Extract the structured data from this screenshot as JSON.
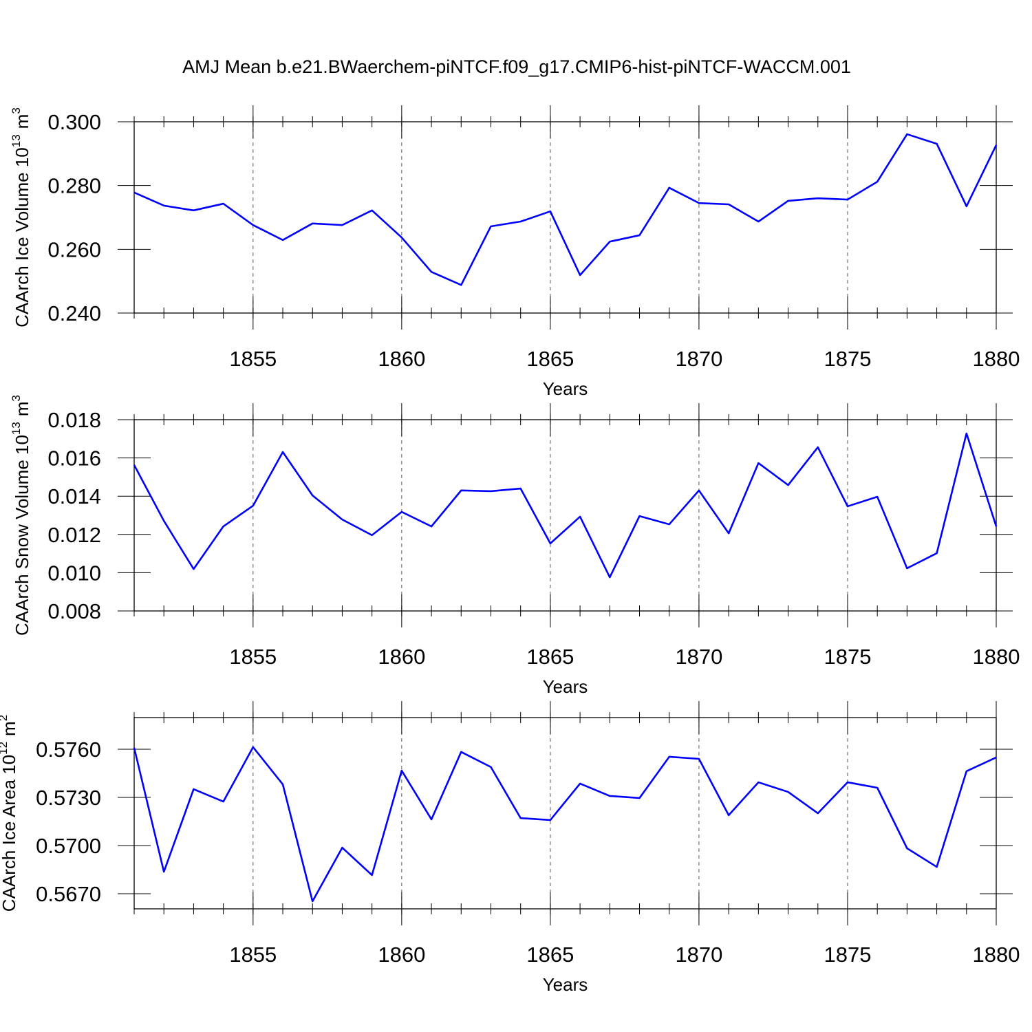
{
  "chart_data": [
    {
      "type": "line",
      "title": "AMJ Mean b.e21.BWaerchem-piNTCF.f09_g17.CMIP6-hist-piNTCF-WACCM.001",
      "xlabel": "Years",
      "ylabel": {
        "text": "CAArch Ice Volume 10",
        "exponent": "13",
        "unit": "m",
        "unit_exponent": "3"
      },
      "x": [
        1851,
        1852,
        1853,
        1854,
        1855,
        1856,
        1857,
        1858,
        1859,
        1860,
        1861,
        1862,
        1863,
        1864,
        1865,
        1866,
        1867,
        1868,
        1869,
        1870,
        1871,
        1872,
        1873,
        1874,
        1875,
        1876,
        1877,
        1878,
        1879,
        1880
      ],
      "series": [
        {
          "color": "#0000ff",
          "values": [
            0.2778,
            0.2737,
            0.2722,
            0.2743,
            0.2676,
            0.2629,
            0.2681,
            0.2676,
            0.2722,
            0.2637,
            0.2529,
            0.2488,
            0.2672,
            0.2687,
            0.2719,
            0.2519,
            0.2624,
            0.2644,
            0.2793,
            0.2745,
            0.2741,
            0.2687,
            0.2752,
            0.276,
            0.2756,
            0.2812,
            0.2961,
            0.2931,
            0.2735,
            0.2927
          ]
        }
      ],
      "xlim": [
        1851,
        1880
      ],
      "xticks": [
        1855,
        1860,
        1865,
        1870,
        1875,
        1880
      ],
      "ylim": [
        0.24,
        0.3
      ],
      "yticks": [
        {
          "value": 0.24,
          "label": "0.240"
        },
        {
          "value": 0.26,
          "label": "0.260"
        },
        {
          "value": 0.28,
          "label": "0.280"
        },
        {
          "value": 0.3,
          "label": "0.300"
        }
      ],
      "grid": true
    },
    {
      "type": "line",
      "xlabel": "Years",
      "ylabel": {
        "text": "CAArch Snow Volume 10",
        "exponent": "13",
        "unit": "m",
        "unit_exponent": "3"
      },
      "x": [
        1851,
        1852,
        1853,
        1854,
        1855,
        1856,
        1857,
        1858,
        1859,
        1860,
        1861,
        1862,
        1863,
        1864,
        1865,
        1866,
        1867,
        1868,
        1869,
        1870,
        1871,
        1872,
        1873,
        1874,
        1875,
        1876,
        1877,
        1878,
        1879,
        1880
      ],
      "series": [
        {
          "color": "#0000ff",
          "values": [
            0.01563,
            0.01271,
            0.01019,
            0.01242,
            0.0135,
            0.01631,
            0.01404,
            0.01278,
            0.01196,
            0.01318,
            0.01242,
            0.0143,
            0.01426,
            0.0144,
            0.01153,
            0.01293,
            0.00976,
            0.01296,
            0.01253,
            0.0143,
            0.01206,
            0.01573,
            0.01458,
            0.01656,
            0.01347,
            0.01397,
            0.01023,
            0.01102,
            0.01728,
            0.01242
          ]
        }
      ],
      "xlim": [
        1851,
        1880
      ],
      "xticks": [
        1855,
        1860,
        1865,
        1870,
        1875,
        1880
      ],
      "ylim": [
        0.008,
        0.018
      ],
      "yticks": [
        0.008,
        {
          "value": 0.01,
          "label": "0.010"
        },
        0.012,
        0.014,
        0.016,
        0.018
      ],
      "grid": true
    },
    {
      "type": "line",
      "xlabel": "Years",
      "ylabel": {
        "text": "CAArch Ice Area 10",
        "exponent": "12",
        "unit": "m",
        "unit_exponent": "2"
      },
      "x": [
        1851,
        1852,
        1853,
        1854,
        1855,
        1856,
        1857,
        1858,
        1859,
        1860,
        1861,
        1862,
        1863,
        1864,
        1865,
        1866,
        1867,
        1868,
        1869,
        1870,
        1871,
        1872,
        1873,
        1874,
        1875,
        1876,
        1877,
        1878,
        1879,
        1880
      ],
      "series": [
        {
          "color": "#0000ff",
          "values": [
            0.57609,
            0.56837,
            0.57351,
            0.57274,
            0.57613,
            0.57381,
            0.56653,
            0.56987,
            0.56816,
            0.57467,
            0.57163,
            0.57583,
            0.57489,
            0.57171,
            0.57159,
            0.57386,
            0.57309,
            0.57296,
            0.57553,
            0.5754,
            0.57189,
            0.57394,
            0.57334,
            0.57201,
            0.57394,
            0.5736,
            0.56983,
            0.56867,
            0.57463,
            0.57549
          ]
        }
      ],
      "xlim": [
        1851,
        1880
      ],
      "xticks": [
        1855,
        1860,
        1865,
        1870,
        1875,
        1880
      ],
      "ylim": [
        0.56606,
        0.57797
      ],
      "yticks": [
        {
          "value": 0.567,
          "label": "0.5670"
        },
        {
          "value": 0.57,
          "label": "0.5700"
        },
        {
          "value": 0.573,
          "label": "0.5730"
        },
        {
          "value": 0.576,
          "label": "0.5760"
        }
      ],
      "grid": true
    }
  ]
}
